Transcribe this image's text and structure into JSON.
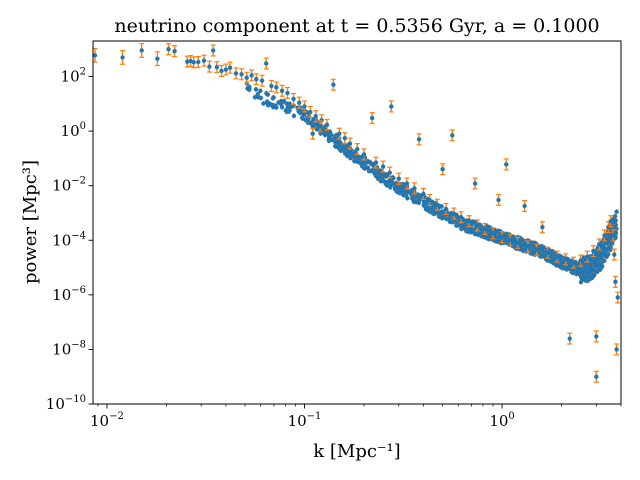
{
  "chart_data": {
    "type": "scatter",
    "title": "neutrino component at t = 0.5356 Gyr, a = 0.1000",
    "xlabel": "k [Mpc⁻¹]",
    "ylabel": "power [Mpc³]",
    "xscale": "log",
    "yscale": "log",
    "xlim": [
      0.0085,
      4.0
    ],
    "ylim": [
      1e-10,
      2000
    ],
    "grid": false,
    "legend": "none",
    "x_ticks": [
      {
        "value": 0.01,
        "base": "10",
        "exp": "−2"
      },
      {
        "value": 0.1,
        "base": "10",
        "exp": "−1"
      },
      {
        "value": 1,
        "base": "10",
        "exp": "0"
      }
    ],
    "y_ticks": [
      {
        "value": 100,
        "base": "10",
        "exp": "2"
      },
      {
        "value": 1,
        "base": "10",
        "exp": "0"
      },
      {
        "value": 0.01,
        "base": "10",
        "exp": "−2"
      },
      {
        "value": 0.0001,
        "base": "10",
        "exp": "−4"
      },
      {
        "value": 1e-06,
        "base": "10",
        "exp": "−6"
      },
      {
        "value": 1e-08,
        "base": "10",
        "exp": "−8"
      },
      {
        "value": 1e-10,
        "base": "10",
        "exp": "−10"
      }
    ],
    "colors": {
      "points": "#1f77b4",
      "errorbars": "#ff7f0e"
    },
    "series": [
      {
        "marker": "point",
        "points": [
          [
            0.0087,
            600,
            0.25
          ],
          [
            0.012,
            500,
            0.25
          ],
          [
            0.015,
            900,
            0.25
          ],
          [
            0.018,
            450,
            0.25
          ],
          [
            0.0205,
            1000,
            0.2
          ],
          [
            0.022,
            850,
            0.2
          ],
          [
            0.0255,
            350,
            0.2
          ],
          [
            0.0265,
            370,
            0.2
          ],
          [
            0.0275,
            330,
            0.2
          ],
          [
            0.029,
            340,
            0.2
          ],
          [
            0.031,
            380,
            0.2
          ],
          [
            0.033,
            230,
            0.2
          ],
          [
            0.0345,
            900,
            0.2
          ],
          [
            0.036,
            220,
            0.2
          ],
          [
            0.038,
            160,
            0.2
          ],
          [
            0.04,
            180,
            0.2
          ],
          [
            0.042,
            210,
            0.2
          ],
          [
            0.045,
            130,
            0.2
          ],
          [
            0.048,
            120,
            0.2
          ],
          [
            0.051,
            90,
            0.2
          ],
          [
            0.054,
            110,
            0.2
          ],
          [
            0.057,
            80,
            0.2
          ],
          [
            0.061,
            70,
            0.2
          ],
          [
            0.064,
            300,
            0.2
          ],
          [
            0.068,
            45,
            0.2
          ],
          [
            0.072,
            40,
            0.2
          ],
          [
            0.077,
            30,
            0.2
          ],
          [
            0.082,
            25,
            0.2
          ],
          [
            0.088,
            15,
            0.2
          ],
          [
            0.094,
            11,
            0.2
          ],
          [
            0.1,
            8,
            0.2
          ],
          [
            0.107,
            5,
            0.2
          ],
          [
            0.114,
            3.5,
            0.2
          ],
          [
            0.122,
            2.5,
            0.2
          ],
          [
            0.13,
            1.7,
            0.2
          ],
          [
            0.14,
            50,
            0.2
          ],
          [
            0.15,
            0.8,
            0.2
          ],
          [
            0.16,
            0.55,
            0.2
          ],
          [
            0.11,
            0.8,
            0.2
          ],
          [
            0.12,
            1.5,
            0.2
          ],
          [
            0.17,
            0.35,
            0.2
          ],
          [
            0.185,
            0.22,
            0.2
          ],
          [
            0.2,
            0.14,
            0.2
          ],
          [
            0.22,
            3.0,
            0.2
          ],
          [
            0.23,
            0.07,
            0.2
          ],
          [
            0.25,
            0.05,
            0.2
          ],
          [
            0.27,
            0.03,
            0.2
          ],
          [
            0.275,
            8.0,
            0.2
          ],
          [
            0.3,
            0.018,
            0.2
          ],
          [
            0.33,
            0.012,
            0.2
          ],
          [
            0.36,
            0.008,
            0.2
          ],
          [
            0.38,
            0.5,
            0.2
          ],
          [
            0.4,
            0.005,
            0.2
          ],
          [
            0.43,
            0.003,
            0.2
          ],
          [
            0.47,
            0.002,
            0.2
          ],
          [
            0.5,
            0.04,
            0.2
          ],
          [
            0.52,
            0.0014,
            0.2
          ],
          [
            0.56,
            0.7,
            0.2
          ],
          [
            0.57,
            0.00095,
            0.2
          ],
          [
            0.62,
            0.0007,
            0.2
          ],
          [
            0.68,
            0.0005,
            0.2
          ],
          [
            0.73,
            0.012,
            0.2
          ],
          [
            0.75,
            0.00035,
            0.2
          ],
          [
            0.82,
            0.00026,
            0.2
          ],
          [
            0.9,
            0.00018,
            0.2
          ],
          [
            0.96,
            0.003,
            0.2
          ],
          [
            1.0,
            0.00013,
            0.2
          ],
          [
            1.05,
            0.06,
            0.2
          ],
          [
            1.1,
            0.0001,
            0.2
          ],
          [
            1.2,
            8e-05,
            0.2
          ],
          [
            1.3,
            0.0018,
            0.2
          ],
          [
            1.35,
            6e-05,
            0.2
          ],
          [
            1.5,
            4.5e-05,
            0.2
          ],
          [
            1.6,
            0.0003,
            0.2
          ],
          [
            1.7,
            3.5e-05,
            0.2
          ],
          [
            1.9,
            2.5e-05,
            0.2
          ],
          [
            2.1,
            2e-05,
            0.2
          ],
          [
            2.2,
            2.5e-08,
            0.2
          ],
          [
            2.3,
            1.5e-05,
            0.2
          ],
          [
            2.5,
            1.8e-05,
            0.2
          ],
          [
            2.7,
            2.5e-05,
            0.2
          ],
          [
            2.9,
            4e-05,
            0.2
          ],
          [
            3.0,
            3e-08,
            0.2
          ],
          [
            3.0,
            1e-09,
            0.2
          ],
          [
            3.1,
            7e-05,
            0.2
          ],
          [
            3.3,
            0.00015,
            0.2
          ],
          [
            3.45,
            0.0003,
            0.2
          ],
          [
            3.55,
            0.0005,
            0.2
          ],
          [
            3.65,
            0.00015,
            0.2
          ],
          [
            3.7,
            3e-05,
            0.2
          ],
          [
            3.75,
            3e-06,
            0.2
          ],
          [
            3.8,
            1e-08,
            0.2
          ],
          [
            3.85,
            8e-07,
            0.2
          ]
        ]
      }
    ]
  }
}
